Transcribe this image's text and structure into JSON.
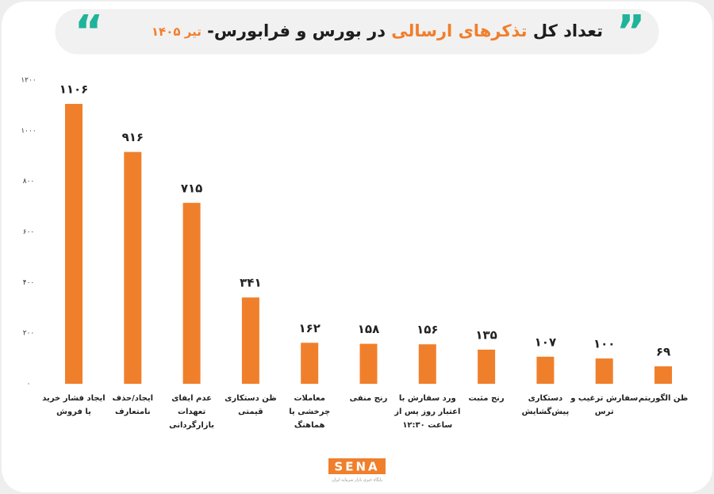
{
  "chart_data": {
    "type": "bar",
    "title": [
      "تعداد کل",
      "تذکرهای ارسالی",
      "در بورس و فرابورس-",
      "تیر ۱۴۰۵"
    ],
    "categories": [
      [
        "ایجاد فشار خرید",
        "یا فروش"
      ],
      [
        "ایجاد/حذف",
        "نامتعارف"
      ],
      [
        "عدم ایفای",
        "تعهدات",
        "بازارگردانی"
      ],
      [
        "ظن دستکاری",
        "قیمتی"
      ],
      [
        "معاملات",
        "چرخشی یا",
        "هماهنگ"
      ],
      [
        "رنج منفی"
      ],
      [
        "ورد سفارش با",
        "اعتبار روز پس از",
        "ساعت ۱۲:۳۰"
      ],
      [
        "رنج مثبت"
      ],
      [
        "دستکاری",
        "پیش‌گشایش"
      ],
      [
        "سفارش ترغیب و",
        "ترس"
      ],
      [
        "ظن الگوریتم"
      ]
    ],
    "values": [
      1106,
      916,
      715,
      341,
      162,
      158,
      156,
      135,
      107,
      100,
      69
    ],
    "value_labels": [
      "۱۱۰۶",
      "۹۱۶",
      "۷۱۵",
      "۳۴۱",
      "۱۶۲",
      "۱۵۸",
      "۱۵۶",
      "۱۳۵",
      "۱۰۷",
      "۱۰۰",
      "۶۹"
    ],
    "color": "#f07f2c",
    "ylim": [
      0,
      1200
    ],
    "yticks": [
      {
        "value": 0,
        "label": "۰"
      },
      {
        "value": 200,
        "label": "۲۰۰"
      },
      {
        "value": 400,
        "label": "۴۰۰"
      },
      {
        "value": 600,
        "label": "۶۰۰"
      },
      {
        "value": 800,
        "label": "۸۰۰"
      },
      {
        "value": 1000,
        "label": "۱۰۰۰"
      },
      {
        "value": 1200,
        "label": "۱۲۰۰"
      }
    ],
    "grid": false,
    "logo": "SENA",
    "logo_tagline": "پایگاه خبری بازار سرمایه ایران"
  }
}
